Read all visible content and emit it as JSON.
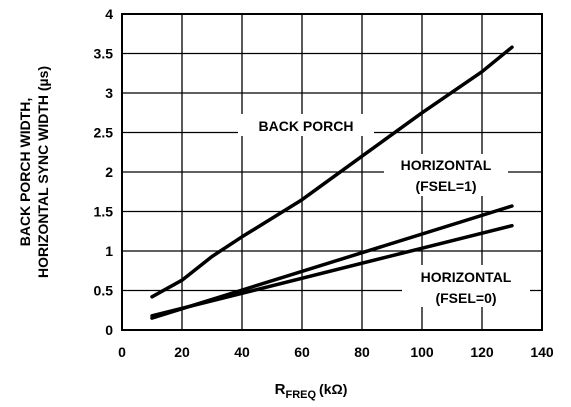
{
  "chart_data": {
    "type": "line",
    "title": "",
    "xlabel": {
      "main": "R",
      "sub": "FREQ",
      "unit": "(kΩ)"
    },
    "ylabel": [
      "BACK PORCH WIDTH,",
      "HORIZONTAL SYNC WIDTH (µs)"
    ],
    "xlim": [
      0,
      140
    ],
    "ylim": [
      0,
      4
    ],
    "x_ticks": [
      "0",
      "20",
      "40",
      "60",
      "80",
      "100",
      "120",
      "140"
    ],
    "y_ticks": [
      "0",
      "0.5",
      "1",
      "1.5",
      "2",
      "2.5",
      "3",
      "3.5",
      "4"
    ],
    "grid": true,
    "series": [
      {
        "name": "BACK PORCH",
        "x": [
          10,
          20,
          30,
          40,
          60,
          80,
          100,
          120,
          130
        ],
        "y": [
          0.42,
          0.63,
          0.93,
          1.18,
          1.65,
          2.2,
          2.75,
          3.27,
          3.58
        ]
      },
      {
        "name": "HORIZONTAL (FSEL=1)",
        "x": [
          10,
          130
        ],
        "y": [
          0.15,
          1.57
        ]
      },
      {
        "name": "HORIZONTAL (FSEL=0)",
        "x": [
          10,
          130
        ],
        "y": [
          0.18,
          1.32
        ]
      }
    ],
    "annotations": [
      {
        "label": "BACK PORCH"
      },
      {
        "label": "HORIZONTAL",
        "sub": "(FSEL=1)"
      },
      {
        "label": "HORIZONTAL",
        "sub": "(FSEL=0)"
      }
    ]
  }
}
